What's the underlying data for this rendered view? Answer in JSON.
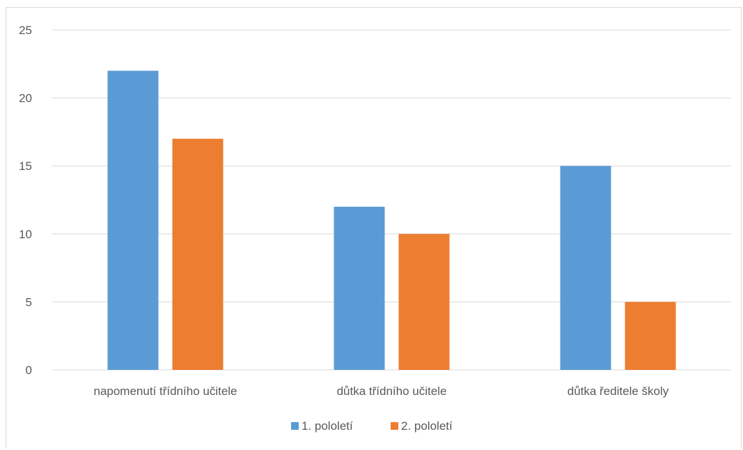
{
  "chart_data": {
    "type": "bar",
    "categories": [
      "napomenutí třídního učitele",
      "důtka třídního učitele",
      "důtka ředitele školy"
    ],
    "series": [
      {
        "name": "1. pololetí",
        "values": [
          22,
          12,
          15
        ],
        "color": "#5b9bd5"
      },
      {
        "name": "2. pololetí",
        "values": [
          17,
          10,
          5
        ],
        "color": "#ed7d31"
      }
    ],
    "ylim": [
      0,
      25
    ],
    "yticks": [
      0,
      5,
      10,
      15,
      20,
      25
    ],
    "grid": true,
    "gridColor": "#d9d9d9",
    "legendPosition": "bottom"
  }
}
